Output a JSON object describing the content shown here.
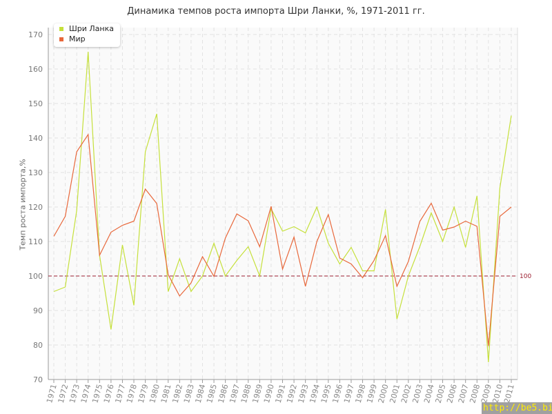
{
  "chart_data": {
    "type": "line",
    "title": "Динамика темпов роста импорта Шри Ланки, %, 1971-2011 гг.",
    "xlabel": "",
    "ylabel": "Темп роста импорта,%",
    "ylim": [
      70,
      170
    ],
    "yticks": [
      70,
      80,
      90,
      100,
      110,
      120,
      130,
      140,
      150,
      160,
      170
    ],
    "grid": true,
    "legend_position": "top-left",
    "reference_line": {
      "value": 100,
      "label": "100",
      "color": "#9b1c2e"
    },
    "x": [
      1971,
      1972,
      1973,
      1974,
      1975,
      1976,
      1977,
      1978,
      1979,
      1980,
      1981,
      1982,
      1983,
      1984,
      1985,
      1986,
      1987,
      1988,
      1989,
      1990,
      1991,
      1992,
      1993,
      1994,
      1995,
      1996,
      1997,
      1998,
      1999,
      2000,
      2001,
      2002,
      2003,
      2004,
      2005,
      2006,
      2007,
      2008,
      2009,
      2010,
      2011
    ],
    "series": [
      {
        "name": "Шри Ланка",
        "color": "#c5e03a",
        "values": [
          95.5,
          96.8,
          119,
          165,
          106,
          84.5,
          109,
          91.5,
          136,
          147,
          95.5,
          105,
          95.5,
          100,
          109.5,
          100,
          104.5,
          108.5,
          100,
          119.5,
          113,
          114.3,
          112.5,
          120,
          109.5,
          103.5,
          108.3,
          101.5,
          101.5,
          119.3,
          87.5,
          100,
          108.5,
          118.3,
          110,
          120,
          108.3,
          123.2,
          75,
          125.5,
          146.5
        ]
      },
      {
        "name": "Мир",
        "color": "#e8673a",
        "values": [
          111.5,
          117.3,
          136,
          141,
          106,
          112.7,
          114.7,
          115.9,
          125.2,
          121,
          100.4,
          94.2,
          98,
          105.6,
          99.9,
          111,
          118,
          116,
          108.5,
          120.2,
          102,
          111.3,
          97,
          110,
          117.8,
          105.2,
          103.5,
          99.5,
          104.5,
          111.7,
          97,
          104.2,
          115.8,
          121.1,
          113.3,
          114.2,
          115.9,
          114.4,
          79.7,
          117.3,
          120
        ]
      }
    ]
  },
  "watermark": "http://be5.biz/"
}
